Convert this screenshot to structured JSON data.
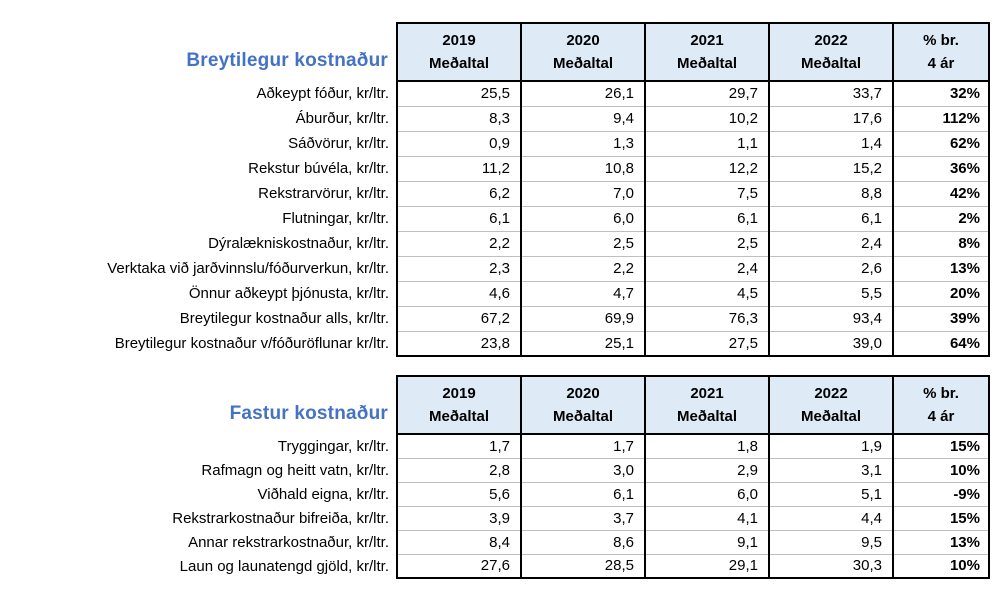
{
  "colors": {
    "title_blue": "#4472C4",
    "header_bg": "#DEEAF6",
    "border_black": "#000000",
    "row_divider": "#BFBFBF"
  },
  "columns": [
    "2019",
    "2020",
    "2021",
    "2022"
  ],
  "header": {
    "avg_label": "Meðaltal",
    "pct_line1": "% br.",
    "pct_line2": "4 ár"
  },
  "tables": [
    {
      "title": "Breytilegur kostnaður",
      "rows": [
        {
          "label": "Aðkeypt fóður, kr/ltr.",
          "values": [
            "25,5",
            "26,1",
            "29,7",
            "33,7"
          ],
          "pct": "32%"
        },
        {
          "label": "Áburður, kr/ltr.",
          "values": [
            "8,3",
            "9,4",
            "10,2",
            "17,6"
          ],
          "pct": "112%"
        },
        {
          "label": "Sáðvörur, kr/ltr.",
          "values": [
            "0,9",
            "1,3",
            "1,1",
            "1,4"
          ],
          "pct": "62%"
        },
        {
          "label": "Rekstur búvéla, kr/ltr.",
          "values": [
            "11,2",
            "10,8",
            "12,2",
            "15,2"
          ],
          "pct": "36%"
        },
        {
          "label": "Rekstrarvörur, kr/ltr.",
          "values": [
            "6,2",
            "7,0",
            "7,5",
            "8,8"
          ],
          "pct": "42%"
        },
        {
          "label": "Flutningar, kr/ltr.",
          "values": [
            "6,1",
            "6,0",
            "6,1",
            "6,1"
          ],
          "pct": "2%"
        },
        {
          "label": "Dýralækniskostnaður, kr/ltr.",
          "values": [
            "2,2",
            "2,5",
            "2,5",
            "2,4"
          ],
          "pct": "8%"
        },
        {
          "label": "Verktaka við jarðvinnslu/fóðurverkun, kr/ltr.",
          "values": [
            "2,3",
            "2,2",
            "2,4",
            "2,6"
          ],
          "pct": "13%"
        },
        {
          "label": "Önnur aðkeypt þjónusta, kr/ltr.",
          "values": [
            "4,6",
            "4,7",
            "4,5",
            "5,5"
          ],
          "pct": "20%"
        },
        {
          "label": "Breytilegur kostnaður alls, kr/ltr.",
          "values": [
            "67,2",
            "69,9",
            "76,3",
            "93,4"
          ],
          "pct": "39%"
        },
        {
          "label": "Breytilegur kostnaður v/fóðuröflunar kr/ltr.",
          "values": [
            "23,8",
            "25,1",
            "27,5",
            "39,0"
          ],
          "pct": "64%"
        }
      ]
    },
    {
      "title": "Fastur kostnaður",
      "rows": [
        {
          "label": "Tryggingar, kr/ltr.",
          "values": [
            "1,7",
            "1,7",
            "1,8",
            "1,9"
          ],
          "pct": "15%"
        },
        {
          "label": "Rafmagn og heitt vatn, kr/ltr.",
          "values": [
            "2,8",
            "3,0",
            "2,9",
            "3,1"
          ],
          "pct": "10%"
        },
        {
          "label": "Viðhald eigna, kr/ltr.",
          "values": [
            "5,6",
            "6,1",
            "6,0",
            "5,1"
          ],
          "pct": "-9%"
        },
        {
          "label": "Rekstrarkostnaður bifreiða, kr/ltr.",
          "values": [
            "3,9",
            "3,7",
            "4,1",
            "4,4"
          ],
          "pct": "15%"
        },
        {
          "label": "Annar rekstrarkostnaður, kr/ltr.",
          "values": [
            "8,4",
            "8,6",
            "9,1",
            "9,5"
          ],
          "pct": "13%"
        },
        {
          "label": "Laun og launatengd gjöld, kr/ltr.",
          "values": [
            "27,6",
            "28,5",
            "29,1",
            "30,3"
          ],
          "pct": "10%"
        }
      ]
    }
  ]
}
